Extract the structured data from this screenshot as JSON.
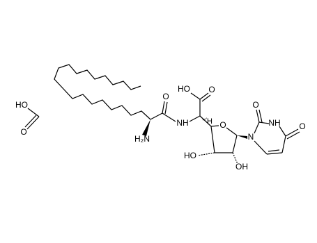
{
  "formic_acid": {
    "hydroxyl": "HO",
    "carbonyl_oxygen": "O"
  },
  "molecule": {
    "amine": "H₂N",
    "amide_oxygen": "O",
    "amide_nitrogen": "NH",
    "acid_hydroxyl": "HO",
    "acid_oxygen": "O",
    "stereo_hydrogen": "H",
    "ring_oxygen": "O",
    "hydroxyl_3": "HO",
    "hydroxyl_2": "OH",
    "uracil_n1": "N",
    "uracil_o2": "O",
    "uracil_n3": "NH",
    "uracil_o4": "O"
  }
}
